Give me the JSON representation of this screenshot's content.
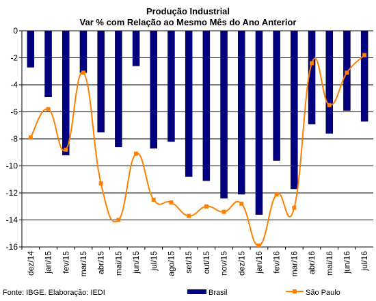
{
  "chart_data": {
    "type": "bar",
    "title": "Produção Industrial",
    "subtitle": "Var % com Relação ao Mesmo Mês do Ano Anterior",
    "categories": [
      "dez/14",
      "jan/15",
      "fev/15",
      "mar/15",
      "abr/15",
      "mai/15",
      "jun/15",
      "jul/15",
      "ago/15",
      "set/15",
      "out/15",
      "nov/15",
      "dez/15",
      "jan/16",
      "fev/16",
      "mar/16",
      "abr/16",
      "mai/16",
      "jun/16",
      "jul/16"
    ],
    "series": [
      {
        "name": "Brasil",
        "type": "bar",
        "color": "#000080",
        "values": [
          -2.7,
          -4.9,
          -9.2,
          -3.1,
          -7.5,
          -8.6,
          -2.6,
          -8.7,
          -8.2,
          -10.8,
          -11.1,
          -12.4,
          -12.1,
          -13.6,
          -9.6,
          -11.7,
          -6.9,
          -7.6,
          -5.9,
          -6.7
        ]
      },
      {
        "name": "São Paulo",
        "type": "line",
        "color": "#ff8000",
        "values": [
          -7.9,
          -5.8,
          -8.8,
          -3.1,
          -11.3,
          -14.0,
          -9.1,
          -12.5,
          -12.7,
          -13.7,
          -13.0,
          -13.4,
          -12.8,
          -15.9,
          -12.1,
          -13.1,
          -2.4,
          -5.5,
          -3.1,
          -1.8
        ]
      }
    ],
    "ylim": [
      -16,
      0
    ],
    "yticks": [
      0,
      -2,
      -4,
      -6,
      -8,
      -10,
      -12,
      -14,
      -16
    ],
    "grid": true,
    "legend": "bottom",
    "xlabel": "",
    "ylabel": ""
  },
  "footer": {
    "source": "Fonte: IBGE. Elaboração: IEDI"
  }
}
